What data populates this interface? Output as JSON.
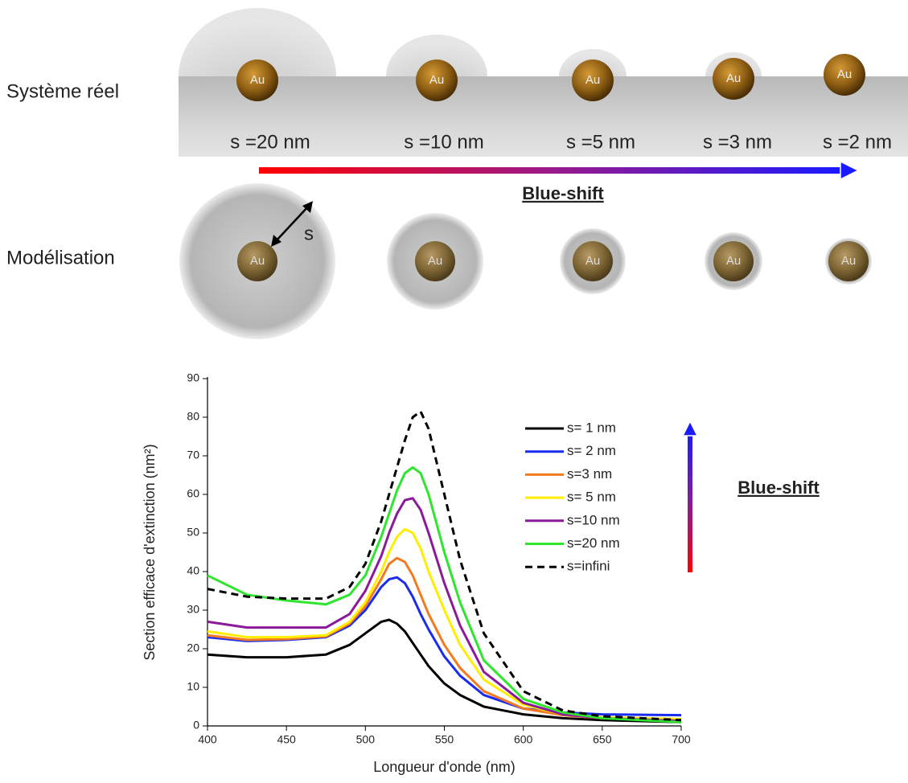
{
  "diagram": {
    "row_labels": [
      "Système réel",
      "Modélisation"
    ],
    "spacings": [
      "s =20 nm",
      "s =10 nm",
      "s =5 nm",
      "s =3 nm",
      "s =2 nm"
    ],
    "particle_label": "Au",
    "radius_label": "s",
    "shift_label": "Blue-shift"
  },
  "chart_data": {
    "type": "line",
    "xlabel": "Longueur d'onde (nm)",
    "ylabel": "Section efficace d'extinction (nm²)",
    "annotation": "Blue-shift",
    "x": [
      400,
      425,
      450,
      475,
      490,
      500,
      510,
      515,
      520,
      525,
      530,
      535,
      540,
      550,
      560,
      575,
      600,
      625,
      650,
      700
    ],
    "xlim": [
      400,
      700
    ],
    "xticks": [
      400,
      450,
      500,
      550,
      600,
      650,
      700
    ],
    "ylim": [
      0,
      90
    ],
    "yticks": [
      0,
      10,
      20,
      30,
      40,
      50,
      60,
      70,
      80,
      90
    ],
    "legend": "upper right",
    "series": [
      {
        "name": "s= 1 nm",
        "color": "#000000",
        "values": [
          18.5,
          17.8,
          17.8,
          18.5,
          21,
          24,
          27,
          27.5,
          26.5,
          24.5,
          21.5,
          18.5,
          15.5,
          11,
          8,
          5,
          3,
          2,
          1.5,
          1
        ]
      },
      {
        "name": "s= 2 nm",
        "color": "#1a2cf0",
        "values": [
          23,
          22,
          22.3,
          23,
          26,
          30,
          36,
          38,
          38.5,
          37,
          33.5,
          29,
          25,
          18,
          13,
          8,
          4.5,
          3.5,
          3,
          2.8
        ]
      },
      {
        "name": "s=3 nm",
        "color": "#f47a20",
        "values": [
          23.5,
          22.3,
          22.5,
          23.2,
          26.5,
          31,
          38,
          42,
          43.5,
          42.5,
          39,
          34,
          29,
          21,
          15,
          9,
          4.5,
          2.8,
          2,
          1.5
        ]
      },
      {
        "name": "s= 5 nm",
        "color": "#ffee00",
        "values": [
          24.5,
          23,
          23,
          23.5,
          27,
          32,
          40,
          45,
          49,
          51,
          50,
          46,
          40,
          30,
          21,
          12,
          5.5,
          3,
          2.2,
          1.8
        ]
      },
      {
        "name": "s=10 nm",
        "color": "#8b1a9b",
        "values": [
          27,
          25.5,
          25.5,
          25.5,
          29,
          35,
          44,
          50,
          55,
          58.5,
          59,
          56,
          50,
          37,
          26,
          14,
          6,
          3,
          2,
          1.3
        ]
      },
      {
        "name": "s=20 nm",
        "color": "#2ee62e",
        "values": [
          39,
          34,
          32.5,
          31.5,
          34,
          39,
          49,
          55,
          61,
          65.5,
          67,
          65.5,
          60,
          45,
          32,
          17,
          7,
          3.5,
          2,
          1
        ]
      },
      {
        "name": "s=infini",
        "color": "#000000",
        "dashed": true,
        "values": [
          35.5,
          33.5,
          33,
          33,
          36,
          42,
          53,
          60,
          67,
          74,
          80,
          81.5,
          77,
          60,
          43,
          24,
          9,
          4,
          2.5,
          1.5
        ]
      }
    ]
  }
}
